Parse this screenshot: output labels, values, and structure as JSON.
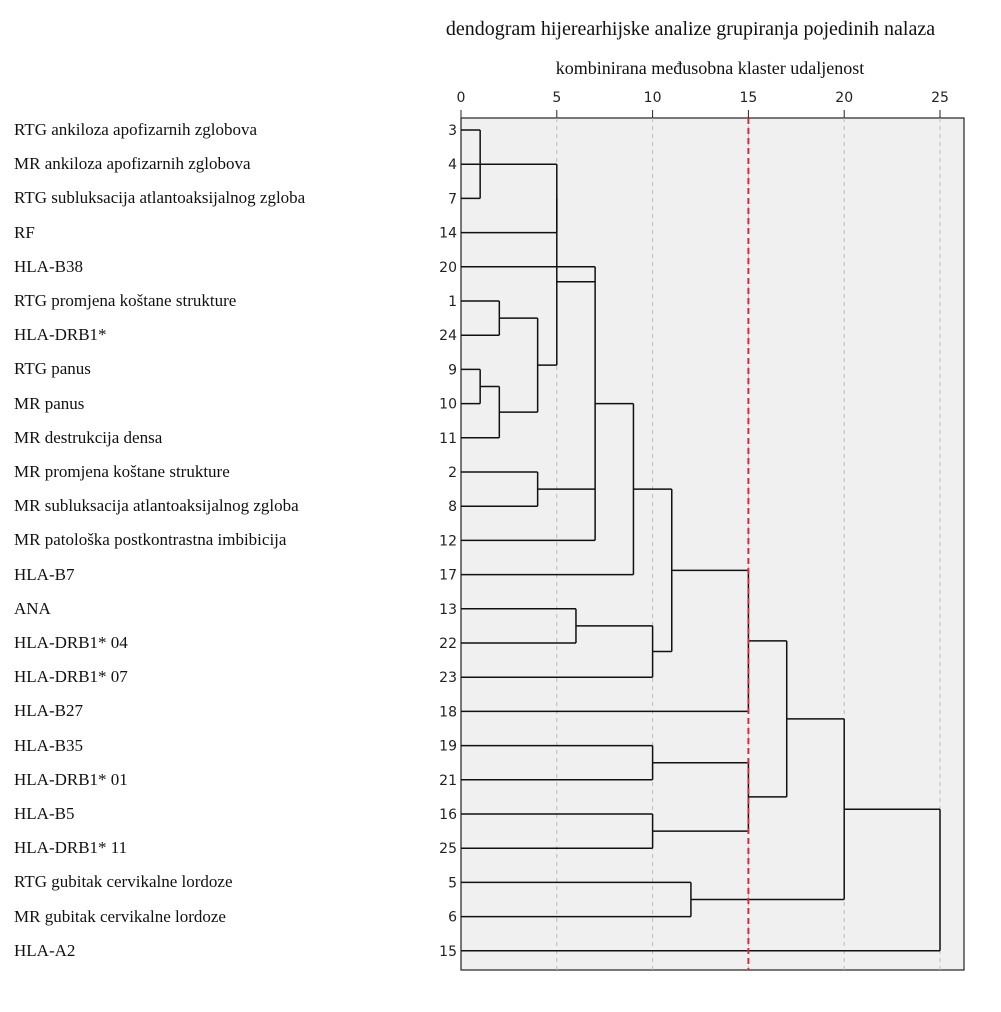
{
  "title": "dendogram hijerearhijske analize grupiranja pojedinih nalaza",
  "subtitle": "kombinirana međusobna klaster udaljenost",
  "chart_data": {
    "type": "dendrogram",
    "xlim": [
      0,
      25
    ],
    "x_ticks": [
      "0",
      "5",
      "10",
      "15",
      "20",
      "25"
    ],
    "grid": "vertical dashed lines at each tick",
    "cut_line": {
      "x": 15,
      "color": "#e0283c",
      "style": "dashed"
    },
    "leaves": [
      {
        "id": "3",
        "label": "RTG ankiloza apofizarnih zglobova"
      },
      {
        "id": "4",
        "label": "MR ankiloza apofizarnih zglobova"
      },
      {
        "id": "7",
        "label": "RTG subluksacija atlantoaksijalnog zgloba"
      },
      {
        "id": "14",
        "label": "RF"
      },
      {
        "id": "20",
        "label": "HLA-B38"
      },
      {
        "id": "1",
        "label": "RTG promjena koštane strukture"
      },
      {
        "id": "24",
        "label": "HLA-DRB1*"
      },
      {
        "id": "9",
        "label": "RTG panus"
      },
      {
        "id": "10",
        "label": "MR panus"
      },
      {
        "id": "11",
        "label": "MR destrukcija densa"
      },
      {
        "id": "2",
        "label": "MR promjena koštane strukture"
      },
      {
        "id": "8",
        "label": "MR subluksacija atlantoaksijalnog zgloba"
      },
      {
        "id": "12",
        "label": "MR patološka postkontrastna imbibicija"
      },
      {
        "id": "17",
        "label": "HLA-B7"
      },
      {
        "id": "13",
        "label": "ANA"
      },
      {
        "id": "22",
        "label": "HLA-DRB1* 04"
      },
      {
        "id": "23",
        "label": "HLA-DRB1* 07"
      },
      {
        "id": "18",
        "label": "HLA-B27"
      },
      {
        "id": "19",
        "label": "HLA-B35"
      },
      {
        "id": "21",
        "label": "HLA-DRB1* 01"
      },
      {
        "id": "16",
        "label": "HLA-B5"
      },
      {
        "id": "25",
        "label": "HLA-DRB1* 11"
      },
      {
        "id": "5",
        "label": "RTG gubitak cervikalne lordoze"
      },
      {
        "id": "6",
        "label": "MR gubitak cervikalne lordoze"
      },
      {
        "id": "15",
        "label": "HLA-A2"
      }
    ],
    "merges": [
      {
        "id": "a",
        "children": [
          "3",
          "7"
        ],
        "height": 1
      },
      {
        "id": "b",
        "children": [
          "a",
          "4"
        ],
        "height": 3
      },
      {
        "id": "c",
        "children": [
          "b",
          "14"
        ],
        "height": 5
      },
      {
        "id": "d",
        "children": [
          "1",
          "24"
        ],
        "height": 2
      },
      {
        "id": "e",
        "children": [
          "9",
          "10"
        ],
        "height": 1
      },
      {
        "id": "f",
        "children": [
          "e",
          "11"
        ],
        "height": 2
      },
      {
        "id": "g",
        "children": [
          "d",
          "f"
        ],
        "height": 4
      },
      {
        "id": "h",
        "children": [
          "c",
          "g"
        ],
        "height": 5
      },
      {
        "id": "i",
        "children": [
          "2",
          "8"
        ],
        "height": 4
      },
      {
        "id": "j",
        "children": [
          "20",
          "h",
          "i",
          "12"
        ],
        "height": 7
      },
      {
        "id": "k",
        "children": [
          "j",
          "17"
        ],
        "height": 9
      },
      {
        "id": "l",
        "children": [
          "13",
          "22"
        ],
        "height": 6
      },
      {
        "id": "m",
        "children": [
          "l",
          "23"
        ],
        "height": 10
      },
      {
        "id": "n",
        "children": [
          "k",
          "m"
        ],
        "height": 11
      },
      {
        "id": "o",
        "children": [
          "n",
          "18"
        ],
        "height": 15
      },
      {
        "id": "p",
        "children": [
          "19",
          "21"
        ],
        "height": 10
      },
      {
        "id": "q",
        "children": [
          "16",
          "25"
        ],
        "height": 10
      },
      {
        "id": "r",
        "children": [
          "p",
          "q"
        ],
        "height": 15
      },
      {
        "id": "s",
        "children": [
          "o",
          "r"
        ],
        "height": 17
      },
      {
        "id": "t",
        "children": [
          "5",
          "6"
        ],
        "height": 12
      },
      {
        "id": "u",
        "children": [
          "s",
          "t"
        ],
        "height": 20
      },
      {
        "id": "v",
        "children": [
          "u",
          "15"
        ],
        "height": 25
      }
    ]
  },
  "colors": {
    "plot_bg": "#f0f0f0",
    "frame": "#222222",
    "branch": "#111111",
    "grid": "#bbbbbb",
    "cut_line": "#e0283c"
  }
}
